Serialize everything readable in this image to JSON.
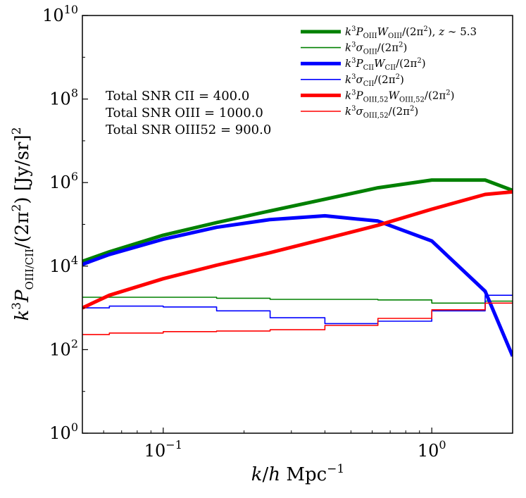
{
  "chart_data": {
    "type": "line",
    "x_scale": "log",
    "y_scale": "log",
    "xlim": [
      0.05,
      2.0
    ],
    "ylim": [
      1,
      10000000000.0
    ],
    "grid": false,
    "legend_position": "top-right",
    "xlabel": "k/h Mpc^-1",
    "ylabel": "k^3 P_OIII/CII/(2π^2) [Jy/sr]^2",
    "x_ticks": [
      {
        "value": 0.1,
        "label": "10^-1"
      },
      {
        "value": 1.0,
        "label": "10^0"
      }
    ],
    "y_ticks": [
      {
        "value": 1,
        "label": "10^0"
      },
      {
        "value": 100,
        "label": "10^2"
      },
      {
        "value": 10000,
        "label": "10^4"
      },
      {
        "value": 1000000,
        "label": "10^6"
      },
      {
        "value": 100000000,
        "label": "10^8"
      },
      {
        "value": 10000000000,
        "label": "10^10"
      }
    ],
    "annotations": [
      "Total SNR CII = 400.0",
      "Total SNR OIII = 1000.0",
      "Total SNR OIII52 = 900.0"
    ],
    "series": [
      {
        "name": "k^3 P_OIII W_OIII/(2π^2), z ~ 5.3",
        "color": "#008000",
        "style": "thick",
        "step": false,
        "x": [
          0.05,
          0.063,
          0.1,
          0.158,
          0.25,
          0.4,
          0.63,
          1.0,
          1.58,
          2.0
        ],
        "y": [
          13000,
          22000,
          55000,
          110000,
          210000,
          400000,
          750000,
          1150000,
          1150000,
          650000
        ]
      },
      {
        "name": "k^3 σ_OIII/(2π^2)",
        "color": "#008000",
        "style": "thin",
        "step": true,
        "x": [
          0.05,
          0.063,
          0.1,
          0.158,
          0.25,
          0.4,
          0.63,
          1.0,
          1.58,
          2.0
        ],
        "y": [
          1800,
          1800,
          1800,
          1700,
          1600,
          1600,
          1550,
          1300,
          1450,
          1450
        ]
      },
      {
        "name": "k^3 P_CII W_CII/(2π^2)",
        "color": "#0000ff",
        "style": "thick",
        "step": false,
        "x": [
          0.05,
          0.063,
          0.1,
          0.158,
          0.25,
          0.4,
          0.63,
          1.0,
          1.58,
          2.0
        ],
        "y": [
          11000,
          19000,
          44000,
          85000,
          130000,
          160000,
          120000,
          40000,
          2500,
          70
        ]
      },
      {
        "name": "k^3 σ_CII/(2π^2)",
        "color": "#0000ff",
        "style": "thin",
        "step": true,
        "x": [
          0.05,
          0.063,
          0.1,
          0.158,
          0.25,
          0.4,
          0.63,
          1.0,
          1.58,
          2.0
        ],
        "y": [
          1000,
          1100,
          1050,
          850,
          580,
          420,
          480,
          850,
          2000,
          2000
        ]
      },
      {
        "name": "k^3 P_OIII,52 W_OIII,52/(2π^2)",
        "color": "#ff0000",
        "style": "thick",
        "step": false,
        "x": [
          0.05,
          0.063,
          0.1,
          0.158,
          0.25,
          0.4,
          0.63,
          1.0,
          1.58,
          2.0
        ],
        "y": [
          1000,
          2000,
          5000,
          10500,
          21000,
          45000,
          95000,
          230000,
          520000,
          600000
        ]
      },
      {
        "name": "k^3 σ_OIII,52/(2π^2)",
        "color": "#ff0000",
        "style": "thin",
        "step": true,
        "x": [
          0.05,
          0.063,
          0.1,
          0.158,
          0.25,
          0.4,
          0.63,
          1.0,
          1.58,
          2.0
        ],
        "y": [
          230,
          250,
          270,
          280,
          300,
          380,
          560,
          900,
          1300,
          1300
        ]
      }
    ]
  }
}
